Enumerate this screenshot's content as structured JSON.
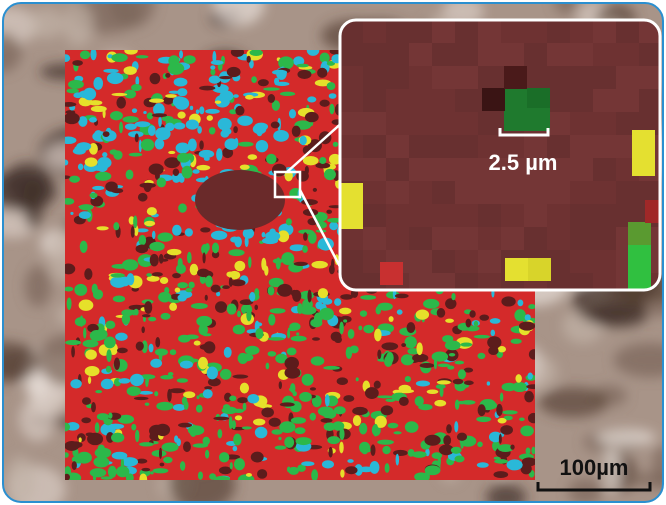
{
  "inset": {
    "scale_label": "2.5 µm"
  },
  "scale_bar": {
    "label": "100µm"
  }
}
